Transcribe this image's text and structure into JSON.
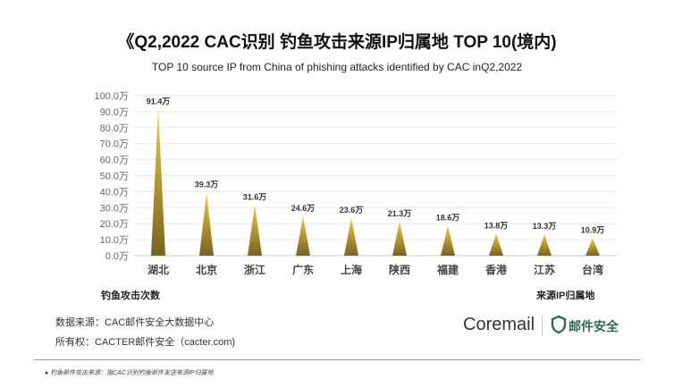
{
  "title": "《Q2,2022  CAC识别 钓鱼攻击来源IP归属地 TOP 10(境内)",
  "subtitle": "TOP 10 source IP from China of phishing attacks identified by CAC inQ2,2022",
  "chart_data": {
    "type": "bar",
    "categories": [
      "湖北",
      "北京",
      "浙江",
      "广东",
      "上海",
      "陕西",
      "福建",
      "香港",
      "江苏",
      "台湾"
    ],
    "values": [
      91.4,
      39.3,
      31.6,
      24.6,
      23.6,
      21.3,
      18.6,
      13.8,
      13.3,
      10.9
    ],
    "data_labels": [
      "91.4万",
      "39.3万",
      "31.6万",
      "24.6万",
      "23.6万",
      "21.3万",
      "18.6万",
      "13.8万",
      "13.3万",
      "10.9万"
    ],
    "unit": "万",
    "ylim": [
      0,
      100
    ],
    "yticks": [
      "0.0万",
      "10.0万",
      "20.0万",
      "30.0万",
      "40.0万",
      "50.0万",
      "60.0万",
      "70.0万",
      "80.0万",
      "90.0万",
      "100.0万"
    ],
    "ylabel": "钓鱼攻击次数",
    "xlabel": "来源IP归属地",
    "grid": true,
    "bar_shape": "triangle",
    "colors": {
      "top": "#f5c93a",
      "bottom": "#7a6222"
    }
  },
  "footer": {
    "source": "数据来源：CAC邮件安全大数据中心",
    "copyright": "所有权：CACTER邮件安全（cacter.com)",
    "logo": "Coremail",
    "logo2": "邮件安全",
    "note": "钓鱼邮件攻击来源：指CAC识别钓鱼邮件发送来源IP归属地"
  }
}
